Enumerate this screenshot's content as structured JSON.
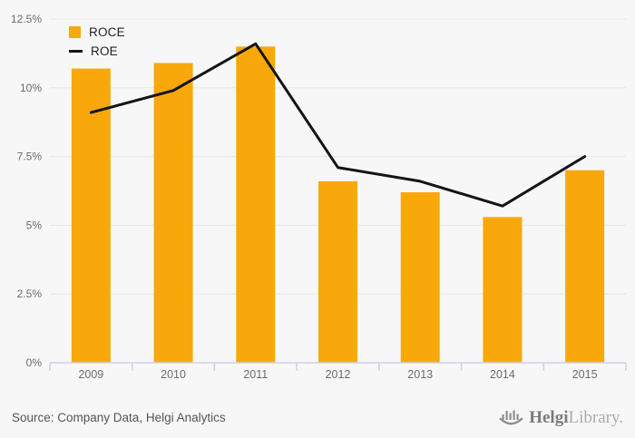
{
  "chart_data": {
    "type": "bar",
    "combo": "bar+line",
    "title": "",
    "xlabel": "",
    "ylabel": "",
    "unit": "%",
    "categories": [
      "2009",
      "2010",
      "2011",
      "2012",
      "2013",
      "2014",
      "2015"
    ],
    "series": [
      {
        "name": "ROCE",
        "type": "bar",
        "color": "#f9a80c",
        "values": [
          10.7,
          10.9,
          11.5,
          6.6,
          6.2,
          5.3,
          7.0
        ]
      },
      {
        "name": "ROE",
        "type": "line",
        "color": "#141414",
        "values": [
          9.1,
          9.9,
          11.6,
          7.1,
          6.6,
          5.7,
          7.5
        ]
      }
    ],
    "ylim": [
      0,
      12.5
    ],
    "y_ticks": [
      {
        "value": 0,
        "label": "0%"
      },
      {
        "value": 2.5,
        "label": "2.5%"
      },
      {
        "value": 5,
        "label": "5%"
      },
      {
        "value": 7.5,
        "label": "7.5%"
      },
      {
        "value": 10,
        "label": "10%"
      },
      {
        "value": 12.5,
        "label": "12.5%"
      }
    ],
    "grid": true,
    "legend_position": "top-left"
  },
  "legend": {
    "items": [
      {
        "label": "ROCE",
        "swatch": "bar"
      },
      {
        "label": "ROE",
        "swatch": "line"
      }
    ]
  },
  "footer": {
    "source_text": "Source: Company Data, Helgi Analytics",
    "logo": {
      "name_bold": "Helgi",
      "name_light": "Library."
    }
  },
  "colors": {
    "background": "#f7f7f7",
    "bar": "#f9a80c",
    "line": "#141414",
    "grid": "#e8e8e8",
    "axis": "#cbd3e6",
    "axis_label": "#6b6b6b",
    "legend_text": "#222222",
    "source_text": "#555555",
    "logo_dark": "#7a7a7a",
    "logo_light": "#ababab",
    "logo_icon": "#8f8f8f"
  }
}
